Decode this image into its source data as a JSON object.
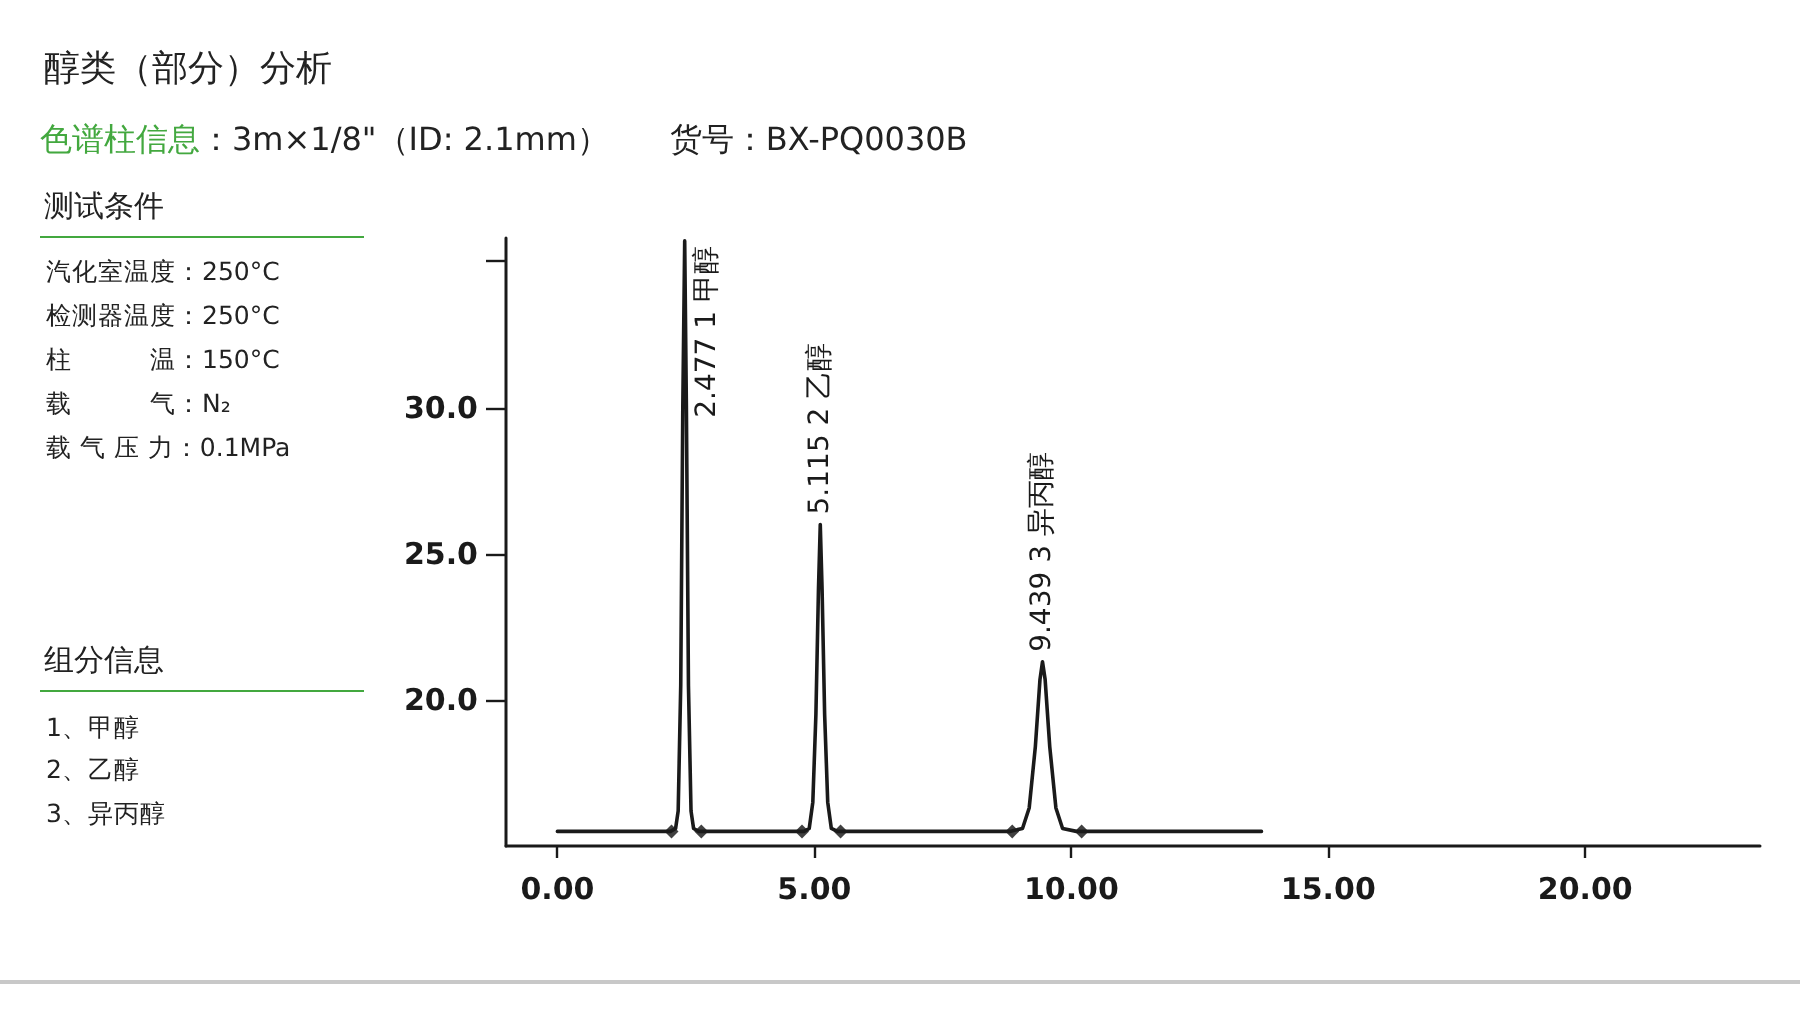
{
  "chart_data": {
    "type": "line",
    "title": "醇类（部分）分析",
    "subtitle": "色谱柱信息：3m×1/8\"（ID: 2.1mm）      货号：BX-PQ0030B",
    "annotations": [
      {
        "text": "2.477 1 甲醇",
        "x": 2.477,
        "y": 35.7
      },
      {
        "text": "5.115 2 乙醇",
        "x": 5.115,
        "y": 26.0
      },
      {
        "text": "9.439 3 异丙醇",
        "x": 9.439,
        "y": 21.3
      },
      "测试条件",
      "汽化室温度：250°C",
      "检测器温度：250°C",
      "柱　　　温：150°C",
      "载　　　气：N₂",
      "载 气 压 力：0.1MPa",
      "组分信息",
      "1、甲醇",
      "2、乙醇",
      "3、异丙醇"
    ],
    "series": [
      {
        "color": "#1a1a1a",
        "x": [
          0,
          2.2,
          2.3,
          2.35,
          2.4,
          2.44,
          2.477,
          2.51,
          2.55,
          2.6,
          2.65,
          2.75,
          4.8,
          4.9,
          4.97,
          5.03,
          5.08,
          5.115,
          5.15,
          5.2,
          5.26,
          5.33,
          5.45,
          8.8,
          9.05,
          9.18,
          9.3,
          9.39,
          9.439,
          9.49,
          9.58,
          9.7,
          9.83,
          10.1,
          13.7
        ],
        "values": [
          15.5,
          15.5,
          15.6,
          16.2,
          20.5,
          30.0,
          35.7,
          30.0,
          20.5,
          16.2,
          15.6,
          15.5,
          15.5,
          15.6,
          16.5,
          19.5,
          23.8,
          26.0,
          23.8,
          19.5,
          16.5,
          15.6,
          15.5,
          15.5,
          15.6,
          16.3,
          18.4,
          20.7,
          21.3,
          20.7,
          18.4,
          16.3,
          15.6,
          15.5,
          15.5
        ]
      },
      {
        "type": "scatter",
        "color": "#111111",
        "marker": "diamond",
        "x": [
          2.22,
          2.8,
          4.76,
          5.51,
          8.85,
          10.2
        ],
        "values": [
          15.5,
          15.5,
          15.5,
          15.5,
          15.5,
          15.5
        ]
      }
    ],
    "xlim": [
      -1,
      23.4
    ],
    "xticks": [
      {
        "value": 0,
        "label": "0.00"
      },
      {
        "value": 5,
        "label": "5.00"
      },
      {
        "value": 10,
        "label": "10.00"
      },
      {
        "value": 15,
        "label": "15.00"
      },
      {
        "value": 20,
        "label": "20.00"
      }
    ],
    "ylim": [
      15,
      35.8
    ],
    "yticks": [
      {
        "value": 20,
        "label": "20.0"
      },
      {
        "value": 25,
        "label": "25.0"
      },
      {
        "value": 30,
        "label": "30.0"
      },
      {
        "value": 35,
        "label": null
      }
    ]
  }
}
